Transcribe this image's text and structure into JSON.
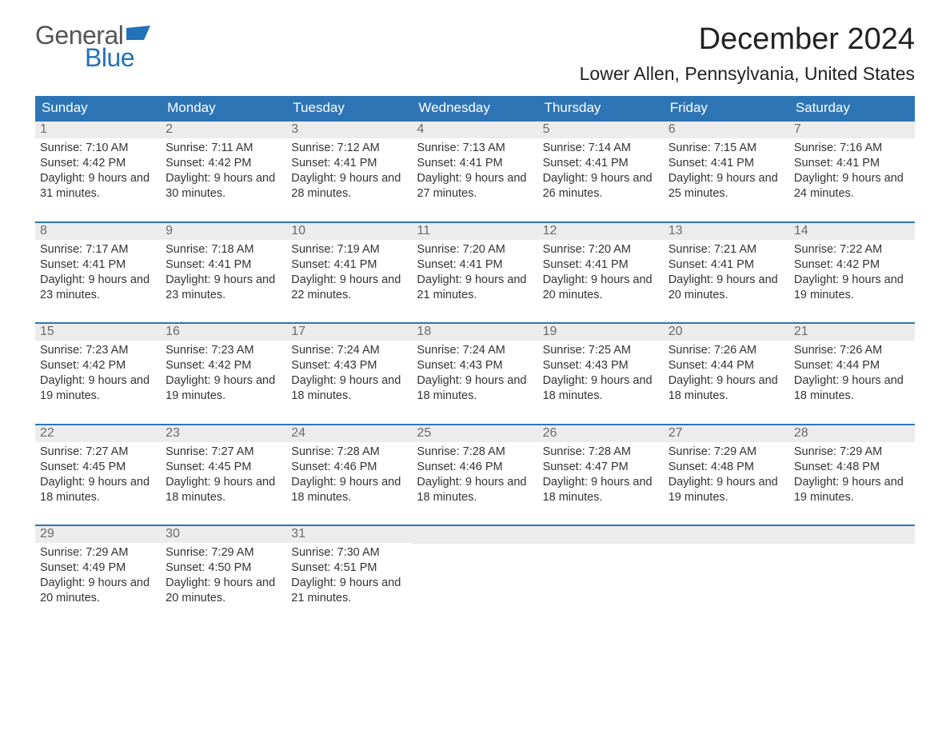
{
  "brand": {
    "word1": "General",
    "word2": "Blue",
    "accent_color": "#2272b9",
    "text_color": "#555555"
  },
  "title": "December 2024",
  "location": "Lower Allen, Pennsylvania, United States",
  "colors": {
    "header_bg": "#2e75b6",
    "band_bg": "#ececec",
    "rule": "#2e75b6",
    "text": "#333333",
    "muted": "#6b6b6b"
  },
  "day_names": [
    "Sunday",
    "Monday",
    "Tuesday",
    "Wednesday",
    "Thursday",
    "Friday",
    "Saturday"
  ],
  "weeks": [
    [
      {
        "n": "1",
        "sunrise": "7:10 AM",
        "sunset": "4:42 PM",
        "daylight": "9 hours and 31 minutes."
      },
      {
        "n": "2",
        "sunrise": "7:11 AM",
        "sunset": "4:42 PM",
        "daylight": "9 hours and 30 minutes."
      },
      {
        "n": "3",
        "sunrise": "7:12 AM",
        "sunset": "4:41 PM",
        "daylight": "9 hours and 28 minutes."
      },
      {
        "n": "4",
        "sunrise": "7:13 AM",
        "sunset": "4:41 PM",
        "daylight": "9 hours and 27 minutes."
      },
      {
        "n": "5",
        "sunrise": "7:14 AM",
        "sunset": "4:41 PM",
        "daylight": "9 hours and 26 minutes."
      },
      {
        "n": "6",
        "sunrise": "7:15 AM",
        "sunset": "4:41 PM",
        "daylight": "9 hours and 25 minutes."
      },
      {
        "n": "7",
        "sunrise": "7:16 AM",
        "sunset": "4:41 PM",
        "daylight": "9 hours and 24 minutes."
      }
    ],
    [
      {
        "n": "8",
        "sunrise": "7:17 AM",
        "sunset": "4:41 PM",
        "daylight": "9 hours and 23 minutes."
      },
      {
        "n": "9",
        "sunrise": "7:18 AM",
        "sunset": "4:41 PM",
        "daylight": "9 hours and 23 minutes."
      },
      {
        "n": "10",
        "sunrise": "7:19 AM",
        "sunset": "4:41 PM",
        "daylight": "9 hours and 22 minutes."
      },
      {
        "n": "11",
        "sunrise": "7:20 AM",
        "sunset": "4:41 PM",
        "daylight": "9 hours and 21 minutes."
      },
      {
        "n": "12",
        "sunrise": "7:20 AM",
        "sunset": "4:41 PM",
        "daylight": "9 hours and 20 minutes."
      },
      {
        "n": "13",
        "sunrise": "7:21 AM",
        "sunset": "4:41 PM",
        "daylight": "9 hours and 20 minutes."
      },
      {
        "n": "14",
        "sunrise": "7:22 AM",
        "sunset": "4:42 PM",
        "daylight": "9 hours and 19 minutes."
      }
    ],
    [
      {
        "n": "15",
        "sunrise": "7:23 AM",
        "sunset": "4:42 PM",
        "daylight": "9 hours and 19 minutes."
      },
      {
        "n": "16",
        "sunrise": "7:23 AM",
        "sunset": "4:42 PM",
        "daylight": "9 hours and 19 minutes."
      },
      {
        "n": "17",
        "sunrise": "7:24 AM",
        "sunset": "4:43 PM",
        "daylight": "9 hours and 18 minutes."
      },
      {
        "n": "18",
        "sunrise": "7:24 AM",
        "sunset": "4:43 PM",
        "daylight": "9 hours and 18 minutes."
      },
      {
        "n": "19",
        "sunrise": "7:25 AM",
        "sunset": "4:43 PM",
        "daylight": "9 hours and 18 minutes."
      },
      {
        "n": "20",
        "sunrise": "7:26 AM",
        "sunset": "4:44 PM",
        "daylight": "9 hours and 18 minutes."
      },
      {
        "n": "21",
        "sunrise": "7:26 AM",
        "sunset": "4:44 PM",
        "daylight": "9 hours and 18 minutes."
      }
    ],
    [
      {
        "n": "22",
        "sunrise": "7:27 AM",
        "sunset": "4:45 PM",
        "daylight": "9 hours and 18 minutes."
      },
      {
        "n": "23",
        "sunrise": "7:27 AM",
        "sunset": "4:45 PM",
        "daylight": "9 hours and 18 minutes."
      },
      {
        "n": "24",
        "sunrise": "7:28 AM",
        "sunset": "4:46 PM",
        "daylight": "9 hours and 18 minutes."
      },
      {
        "n": "25",
        "sunrise": "7:28 AM",
        "sunset": "4:46 PM",
        "daylight": "9 hours and 18 minutes."
      },
      {
        "n": "26",
        "sunrise": "7:28 AM",
        "sunset": "4:47 PM",
        "daylight": "9 hours and 18 minutes."
      },
      {
        "n": "27",
        "sunrise": "7:29 AM",
        "sunset": "4:48 PM",
        "daylight": "9 hours and 19 minutes."
      },
      {
        "n": "28",
        "sunrise": "7:29 AM",
        "sunset": "4:48 PM",
        "daylight": "9 hours and 19 minutes."
      }
    ],
    [
      {
        "n": "29",
        "sunrise": "7:29 AM",
        "sunset": "4:49 PM",
        "daylight": "9 hours and 20 minutes."
      },
      {
        "n": "30",
        "sunrise": "7:29 AM",
        "sunset": "4:50 PM",
        "daylight": "9 hours and 20 minutes."
      },
      {
        "n": "31",
        "sunrise": "7:30 AM",
        "sunset": "4:51 PM",
        "daylight": "9 hours and 21 minutes."
      },
      null,
      null,
      null,
      null
    ]
  ],
  "labels": {
    "sunrise": "Sunrise: ",
    "sunset": "Sunset: ",
    "daylight": "Daylight: "
  }
}
